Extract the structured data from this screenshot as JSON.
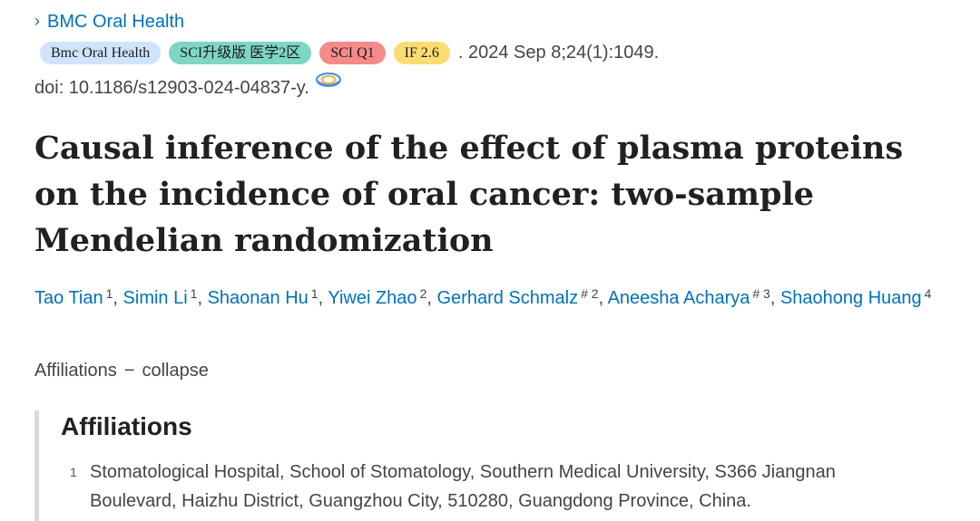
{
  "journal_link": {
    "chevron": "›",
    "label": "BMC Oral Health"
  },
  "badges": {
    "journal": "Bmc Oral Health",
    "sci_zone": "SCI升级版 医学2区",
    "sci_q": "SCI Q1",
    "impact_factor": "IF 2.6"
  },
  "citation": ". 2024 Sep 8;24(1):1049.",
  "doi": "doi: 10.1186/s12903-024-04837-y.",
  "title": "Causal inference of the effect of plasma proteins on the incidence of oral cancer: two-sample Mendelian randomization",
  "authors": [
    {
      "name": "Tao Tian",
      "sup": "1",
      "sep": ", "
    },
    {
      "name": "Simin Li",
      "sup": "1",
      "sep": ", "
    },
    {
      "name": "Shaonan Hu",
      "sup": "1",
      "sep": ", "
    },
    {
      "name": "Yiwei Zhao",
      "sup": "2",
      "sep": ", "
    },
    {
      "name": "Gerhard Schmalz",
      "sup": "# 2",
      "sep": ", "
    },
    {
      "name": "Aneesha Acharya",
      "sup": "# 3",
      "sep": ", "
    },
    {
      "name": "Shaohong Huang",
      "sup": "4",
      "sep": ""
    }
  ],
  "affiliations_toggle": {
    "label": "Affiliations",
    "dash": "−",
    "action": "collapse"
  },
  "affiliations": {
    "heading": "Affiliations",
    "items": [
      {
        "num": "1",
        "text": "Stomatological Hospital, School of Stomatology, Southern Medical University, S366 Jiangnan Boulevard, Haizhu District, Guangzhou City, 510280, Guangdong Province, China."
      }
    ]
  },
  "colors": {
    "link": "#0071bc",
    "text": "#444444",
    "badge_journal": "#cfe3fb",
    "badge_sci": "#7ed6c4",
    "badge_q": "#f58a8a",
    "badge_if": "#fbdc72"
  },
  "icons": {
    "journal_chevron": "chevron-right-icon",
    "doi_icon": "full-text-link-icon"
  }
}
